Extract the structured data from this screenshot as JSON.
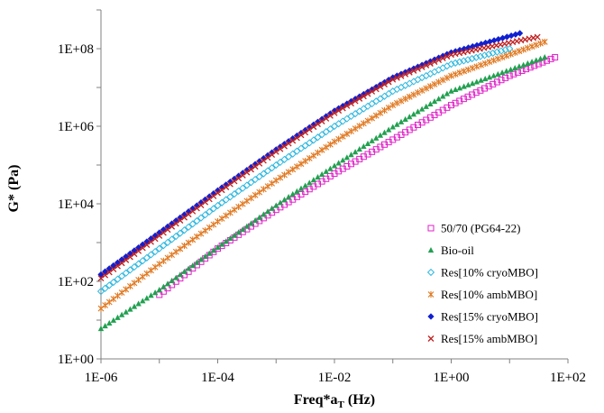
{
  "chart_data": {
    "type": "scatter",
    "x_scale": "log",
    "y_scale": "log",
    "xlim": [
      1e-06,
      100
    ],
    "ylim": [
      1,
      1000000000
    ],
    "x_ticks": [
      "1E-06",
      "1E-04",
      "1E-02",
      "1E+00",
      "1E+02"
    ],
    "y_ticks": [
      "1E+00",
      "1E+02",
      "1E+04",
      "1E+06",
      "1E+08"
    ],
    "xlabel": {
      "main": "Freq*a",
      "sub": "T",
      "tail": " (Hz)"
    },
    "ylabel": "G* (Pa)",
    "legend_position": "right",
    "series": [
      {
        "name": "50/70 (PG64-22)",
        "marker": "square-open",
        "color": "#e020c8",
        "points": [
          [
            1e-05,
            45
          ],
          [
            0.0001,
            700
          ],
          [
            0.001,
            7000
          ],
          [
            0.01,
            60000
          ],
          [
            0.1,
            450000
          ],
          [
            1,
            3500000
          ],
          [
            10,
            20000000
          ],
          [
            60,
            60000000
          ]
        ]
      },
      {
        "name": "Bio-oil",
        "marker": "triangle",
        "color": "#22a050",
        "points": [
          [
            1e-06,
            6
          ],
          [
            1e-05,
            60
          ],
          [
            0.0001,
            750
          ],
          [
            0.001,
            9000
          ],
          [
            0.01,
            95000
          ],
          [
            0.1,
            950000
          ],
          [
            1,
            8000000
          ],
          [
            40,
            60000000
          ]
        ]
      },
      {
        "name": "Res[10% cryoMBO]",
        "marker": "diamond-open",
        "color": "#30b8e0",
        "points": [
          [
            1e-06,
            55
          ],
          [
            1e-05,
            700
          ],
          [
            0.0001,
            9000
          ],
          [
            0.001,
            100000
          ],
          [
            0.01,
            1000000
          ],
          [
            0.1,
            8000000
          ],
          [
            1,
            40000000
          ],
          [
            10,
            100000000
          ]
        ]
      },
      {
        "name": "Res[10% ambMBO]",
        "marker": "star",
        "color": "#e07820",
        "points": [
          [
            1e-06,
            20
          ],
          [
            1e-05,
            280
          ],
          [
            0.0001,
            3500
          ],
          [
            0.001,
            40000
          ],
          [
            0.01,
            400000
          ],
          [
            0.1,
            3500000
          ],
          [
            1,
            20000000
          ],
          [
            40,
            150000000
          ]
        ]
      },
      {
        "name": "Res[15% cryoMBO]",
        "marker": "diamond",
        "color": "#1020d0",
        "points": [
          [
            1e-06,
            150
          ],
          [
            1e-05,
            1800
          ],
          [
            0.0001,
            22000
          ],
          [
            0.001,
            250000
          ],
          [
            0.01,
            2500000
          ],
          [
            0.1,
            18000000
          ],
          [
            1,
            80000000
          ],
          [
            15,
            250000000
          ]
        ]
      },
      {
        "name": "Res[15% ambMBO]",
        "marker": "x",
        "color": "#c02020",
        "points": [
          [
            1e-06,
            120
          ],
          [
            1e-05,
            1500
          ],
          [
            0.0001,
            19000
          ],
          [
            0.001,
            220000
          ],
          [
            0.01,
            2200000
          ],
          [
            0.1,
            16000000
          ],
          [
            1,
            70000000
          ],
          [
            30,
            200000000
          ]
        ]
      }
    ]
  }
}
